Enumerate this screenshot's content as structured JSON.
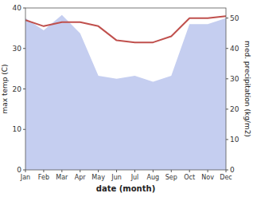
{
  "chart_data": {
    "type": "line",
    "xlabel": "date (month)",
    "ylabel": "max temp (C)",
    "y2label": "med. precipitation (kg/m2)",
    "categories": [
      "Jan",
      "Feb",
      "Mar",
      "Apr",
      "May",
      "Jun",
      "Jul",
      "Aug",
      "Sep",
      "Oct",
      "Nov",
      "Dec"
    ],
    "ylim": [
      0,
      40
    ],
    "yticks": [
      0,
      10,
      20,
      30,
      40
    ],
    "y2lim": [
      0,
      53.33
    ],
    "y2ticks": [
      0,
      10,
      20,
      30,
      40,
      50
    ],
    "grid": false,
    "series": [
      {
        "type": "area",
        "axis": "y2",
        "color": "#c5cef0",
        "values": [
          50.0,
          46.0,
          51.0,
          45.0,
          31.0,
          30.0,
          31.0,
          29.0,
          31.0,
          48.0,
          48.0,
          50.0
        ]
      },
      {
        "type": "line",
        "color": "#c0504d",
        "values": [
          37.0,
          35.5,
          36.5,
          36.5,
          35.5,
          32.0,
          31.5,
          31.5,
          33.0,
          37.5,
          37.5,
          38.0
        ]
      }
    ]
  }
}
